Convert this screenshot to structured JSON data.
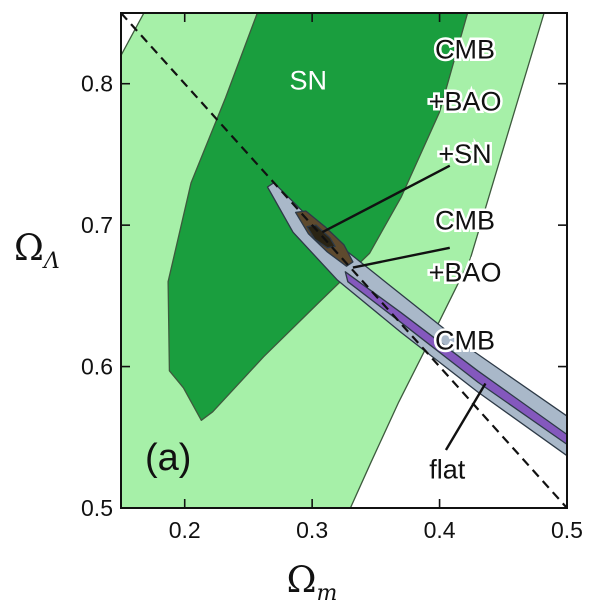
{
  "chart_data": {
    "type": "contour",
    "xlabel": "Ω",
    "xlabel_sub": "m",
    "ylabel": "Ω",
    "ylabel_sub": "Λ",
    "xlim": [
      0.15,
      0.5
    ],
    "ylim": [
      0.5,
      0.85
    ],
    "xticks": [
      "0.2",
      "0.3",
      "0.4",
      "0.5"
    ],
    "yticks": [
      "0.5",
      "0.6",
      "0.7",
      "0.8"
    ],
    "panel_label": "(a)",
    "colors": {
      "sn_outer": "#a6f0a8",
      "sn_inner": "#1a9e3e",
      "cmb_outer": "#a9b8c9",
      "cmb_inner": "#8458bd",
      "combo": "#5e4a2e",
      "flat_line": "#111111"
    },
    "series": [
      {
        "name": "SN",
        "contours": [
          {
            "level": "outer",
            "points": [
              [
                0.15,
                0.5
              ],
              [
                0.15,
                0.82
              ],
              [
                0.168,
                0.85
              ],
              [
                0.482,
                0.85
              ],
              [
                0.452,
                0.76
              ],
              [
                0.424,
                0.676
              ],
              [
                0.396,
                0.625
              ],
              [
                0.368,
                0.575
              ],
              [
                0.346,
                0.532
              ],
              [
                0.33,
                0.5
              ]
            ]
          },
          {
            "level": "inner",
            "points": [
              [
                0.199,
                0.585
              ],
              [
                0.188,
                0.597
              ],
              [
                0.187,
                0.66
              ],
              [
                0.205,
                0.73
              ],
              [
                0.232,
                0.79
              ],
              [
                0.257,
                0.85
              ],
              [
                0.422,
                0.85
              ],
              [
                0.4,
                0.78
              ],
              [
                0.37,
                0.72
              ],
              [
                0.345,
                0.68
              ],
              [
                0.305,
                0.645
              ],
              [
                0.262,
                0.607
              ],
              [
                0.222,
                0.568
              ],
              [
                0.213,
                0.562
              ]
            ]
          }
        ]
      },
      {
        "name": "CMB",
        "contours": [
          {
            "level": "outer",
            "points": [
              [
                0.265,
                0.727
              ],
              [
                0.27,
                0.73
              ],
              [
                0.31,
                0.694
              ],
              [
                0.36,
                0.658
              ],
              [
                0.42,
                0.615
              ],
              [
                0.5,
                0.565
              ],
              [
                0.5,
                0.537
              ],
              [
                0.43,
                0.582
              ],
              [
                0.37,
                0.624
              ],
              [
                0.32,
                0.661
              ],
              [
                0.285,
                0.695
              ]
            ]
          },
          {
            "level": "inner",
            "points": [
              [
                0.326,
                0.667
              ],
              [
                0.37,
                0.638
              ],
              [
                0.43,
                0.597
              ],
              [
                0.5,
                0.552
              ],
              [
                0.5,
                0.545
              ],
              [
                0.43,
                0.589
              ],
              [
                0.37,
                0.631
              ],
              [
                0.328,
                0.66
              ]
            ]
          }
        ]
      },
      {
        "name": "CMB+BAO",
        "contours": [
          {
            "level": "outer",
            "points": [
              [
                0.287,
                0.709
              ],
              [
                0.295,
                0.71
              ],
              [
                0.31,
                0.699
              ],
              [
                0.325,
                0.686
              ],
              [
                0.332,
                0.674
              ],
              [
                0.327,
                0.671
              ],
              [
                0.312,
                0.681
              ],
              [
                0.297,
                0.694
              ]
            ]
          }
        ]
      },
      {
        "name": "CMB+BAO+SN",
        "contours": [
          {
            "level": "inner",
            "points": [
              [
                0.296,
                0.699
              ],
              [
                0.303,
                0.7
              ],
              [
                0.314,
                0.691
              ],
              [
                0.318,
                0.685
              ],
              [
                0.312,
                0.684
              ],
              [
                0.302,
                0.69
              ]
            ]
          }
        ]
      }
    ],
    "flat_line": {
      "label": "flat",
      "points": [
        [
          0.15,
          0.85
        ],
        [
          0.5,
          0.5
        ]
      ]
    },
    "annotations": [
      {
        "text": "SN",
        "style": "white",
        "x": 0.297,
        "y": 0.796
      },
      {
        "text": "CMB",
        "x": 0.42,
        "y": 0.818
      },
      {
        "text": "+BAO",
        "x": 0.42,
        "y": 0.781
      },
      {
        "text": "+SN",
        "x": 0.42,
        "y": 0.744
      },
      {
        "text": "CMB",
        "x": 0.42,
        "y": 0.697
      },
      {
        "text": "+BAO",
        "x": 0.42,
        "y": 0.66
      },
      {
        "text": "CMB",
        "x": 0.42,
        "y": 0.612
      },
      {
        "text": "flat",
        "x": 0.406,
        "y": 0.521
      }
    ],
    "leaders": [
      {
        "from": [
          0.408,
          0.742
        ],
        "to": [
          0.308,
          0.695
        ]
      },
      {
        "from": [
          0.408,
          0.684
        ],
        "to": [
          0.332,
          0.67
        ]
      },
      {
        "from": [
          0.405,
          0.541
        ],
        "to": [
          0.436,
          0.588
        ]
      }
    ]
  }
}
